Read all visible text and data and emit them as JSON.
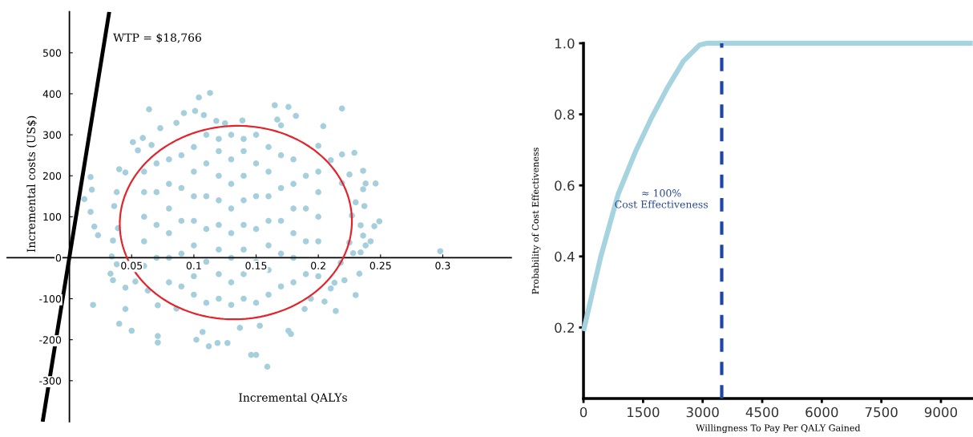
{
  "chart_data": [
    {
      "type": "scatter",
      "xlabel": "Incremental QALYs",
      "ylabel": "Incremental costs (US$)",
      "xlim": [
        -0.05,
        0.355
      ],
      "ylim": [
        -400,
        600
      ],
      "xticks": [
        0.05,
        0.1,
        0.15,
        0.2,
        0.25,
        0.3
      ],
      "yticks": [
        -300,
        -200,
        -100,
        0,
        100,
        200,
        300,
        400,
        500
      ],
      "annotations": [
        "WTP = $18,766"
      ],
      "series": [
        {
          "type": "scatter",
          "color": "#a6cfdd",
          "x": [
            0.113,
            0.104,
            0.064,
            0.101,
            0.092,
            0.108,
            0.051,
            0.059,
            0.017,
            0.018,
            0.012,
            0.017,
            0.02,
            0.023,
            0.04,
            0.045,
            0.038,
            0.036,
            0.039,
            0.035,
            0.034,
            0.038,
            0.033,
            0.035,
            0.045,
            0.053,
            0.019,
            0.045,
            0.04,
            0.05,
            0.071,
            0.071,
            0.102,
            0.107,
            0.112,
            0.119,
            0.127,
            0.146,
            0.137,
            0.071,
            0.086,
            0.063,
            0.118,
            0.139,
            0.125,
            0.073,
            0.086,
            0.066,
            0.055,
            0.165,
            0.176,
            0.219,
            0.182,
            0.204,
            0.167,
            0.17,
            0.2,
            0.229,
            0.219,
            0.21,
            0.236,
            0.225,
            0.246,
            0.238,
            0.236,
            0.219,
            0.23,
            0.237,
            0.227,
            0.249,
            0.245,
            0.234,
            0.236,
            0.242,
            0.238,
            0.225,
            0.234,
            0.228,
            0.298,
            0.218,
            0.233,
            0.221,
            0.213,
            0.21,
            0.23,
            0.205,
            0.214,
            0.194,
            0.189,
            0.176,
            0.178,
            0.153,
            0.159,
            0.15,
            0.06,
            0.06,
            0.06,
            0.06,
            0.06,
            0.08,
            0.08,
            0.08,
            0.08,
            0.08,
            0.08,
            0.1,
            0.1,
            0.1,
            0.1,
            0.1,
            0.1,
            0.1,
            0.12,
            0.12,
            0.12,
            0.12,
            0.12,
            0.12,
            0.12,
            0.12,
            0.14,
            0.14,
            0.14,
            0.14,
            0.14,
            0.14,
            0.14,
            0.14,
            0.16,
            0.16,
            0.16,
            0.16,
            0.16,
            0.16,
            0.16,
            0.18,
            0.18,
            0.18,
            0.18,
            0.18,
            0.18,
            0.2,
            0.2,
            0.2,
            0.2,
            0.2,
            0.09,
            0.09,
            0.09,
            0.09,
            0.09,
            0.11,
            0.11,
            0.11,
            0.11,
            0.11,
            0.11,
            0.13,
            0.13,
            0.13,
            0.13,
            0.13,
            0.13,
            0.13,
            0.13,
            0.15,
            0.15,
            0.15,
            0.15,
            0.15,
            0.15,
            0.17,
            0.17,
            0.17,
            0.17,
            0.17,
            0.19,
            0.19,
            0.19,
            0.19,
            0.07,
            0.07,
            0.07,
            0.07
          ],
          "values": [
            402,
            391,
            362,
            358,
            353,
            348,
            282,
            292,
            197,
            166,
            143,
            112,
            76,
            55,
            216,
            208,
            160,
            126,
            72,
            42,
            3,
            -16,
            -39,
            -55,
            -73,
            -58,
            -115,
            -125,
            -161,
            -178,
            -191,
            -207,
            -200,
            -181,
            -216,
            -208,
            -208,
            -237,
            -171,
            -116,
            -124,
            -80,
            334,
            335,
            328,
            316,
            329,
            275,
            262,
            372,
            368,
            364,
            346,
            321,
            337,
            323,
            273,
            256,
            252,
            238,
            212,
            203,
            181,
            181,
            167,
            182,
            135,
            126,
            103,
            89,
            77,
            79,
            54,
            40,
            30,
            37,
            13,
            11,
            16,
            -12,
            -39,
            -55,
            -61,
            -75,
            -91,
            -107,
            -130,
            -100,
            -125,
            -178,
            -186,
            -166,
            -266,
            -237,
            -20,
            40,
            100,
            160,
            210,
            -60,
            0,
            60,
            120,
            180,
            240,
            -90,
            -45,
            30,
            90,
            150,
            210,
            270,
            -100,
            -40,
            20,
            80,
            140,
            200,
            260,
            290,
            -100,
            -40,
            20,
            80,
            140,
            200,
            260,
            290,
            -90,
            -30,
            30,
            90,
            150,
            210,
            270,
            -60,
            0,
            60,
            120,
            180,
            240,
            -45,
            40,
            100,
            160,
            210,
            -70,
            10,
            90,
            170,
            250,
            -110,
            -10,
            70,
            150,
            230,
            300,
            -115,
            -60,
            0,
            60,
            120,
            180,
            240,
            300,
            -110,
            -10,
            70,
            150,
            230,
            300,
            -70,
            10,
            90,
            170,
            250,
            -40,
            40,
            120,
            200,
            0,
            80,
            160,
            230
          ]
        },
        {
          "type": "line",
          "color": "#000000",
          "x": [
            -0.0215,
            0.032
          ],
          "values": [
            -400,
            600
          ]
        }
      ]
    },
    {
      "type": "line",
      "xlabel": "Willingness To Pay Per QALY Gained",
      "ylabel": "Probability of Cost Effectiveness",
      "xlim": [
        0,
        9800
      ],
      "ylim": [
        0,
        1.0
      ],
      "xticks": [
        0,
        1500,
        3000,
        4500,
        6000,
        7500,
        9000
      ],
      "yticks": [
        0.2,
        0.4,
        0.6,
        0.8,
        {
          "value": 1.0,
          "label": "1.0"
        }
      ],
      "ref_lines": [
        {
          "axis": "x",
          "value": 3480,
          "color": "#1f46a6",
          "line_style": "dashed"
        }
      ],
      "annotations": [
        "≈ 100%\nCost Effectiveness"
      ],
      "series": [
        {
          "color": "#a6d3e0",
          "x": [
            0,
            436,
            872,
            1309,
            1711,
            2114,
            2517,
            2919,
            3100,
            9800
          ],
          "values": [
            0.19,
            0.4,
            0.575,
            0.695,
            0.79,
            0.875,
            0.95,
            0.995,
            1.0,
            1.0
          ]
        }
      ]
    }
  ]
}
